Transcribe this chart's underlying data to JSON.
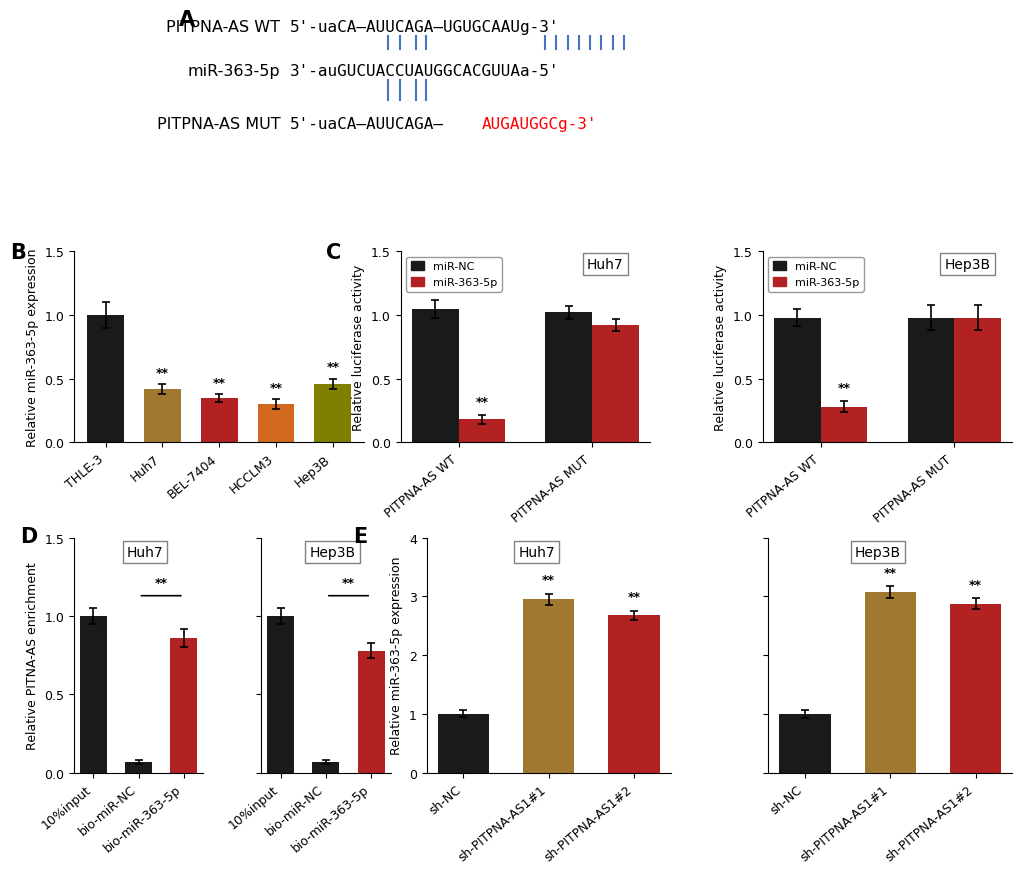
{
  "panel_A": {
    "lines_color": "#4472C4"
  },
  "panel_B": {
    "categories": [
      "THLE-3",
      "Huh7",
      "BEL-7404",
      "HCCLM3",
      "Hep3B"
    ],
    "values": [
      1.0,
      0.42,
      0.35,
      0.3,
      0.46
    ],
    "errors": [
      0.1,
      0.04,
      0.03,
      0.04,
      0.04
    ],
    "colors": [
      "#1a1a1a",
      "#A07830",
      "#B22222",
      "#D2691E",
      "#808000"
    ],
    "ylabel": "Relative miR-363-5p expression",
    "ylim": [
      0,
      1.5
    ],
    "yticks": [
      0,
      0.5,
      1.0,
      1.5
    ],
    "sig_stars": [
      "",
      "**",
      "**",
      "**",
      "**"
    ]
  },
  "panel_C_huh7": {
    "categories": [
      "PITPNA-AS WT",
      "PITPNA-AS MUT"
    ],
    "values_black": [
      1.05,
      1.02
    ],
    "values_red": [
      0.18,
      0.92
    ],
    "errors_black": [
      0.07,
      0.05
    ],
    "errors_red": [
      0.035,
      0.045
    ],
    "ylabel": "Relative luciferase activity",
    "ylim": [
      0,
      1.5
    ],
    "yticks": [
      0,
      0.5,
      1.0,
      1.5
    ],
    "title": "Huh7",
    "sig_wt": "**",
    "legend_black": "miR-NC",
    "legend_red": "miR-363-5p"
  },
  "panel_C_hep3b": {
    "categories": [
      "PITPNA-AS WT",
      "PITPNA-AS MUT"
    ],
    "values_black": [
      0.98,
      0.98
    ],
    "values_red": [
      0.28,
      0.98
    ],
    "errors_black": [
      0.07,
      0.1
    ],
    "errors_red": [
      0.045,
      0.1
    ],
    "ylabel": "Relative luciferase activity",
    "ylim": [
      0,
      1.5
    ],
    "yticks": [
      0,
      0.5,
      1.0,
      1.5
    ],
    "title": "Hep3B",
    "sig_wt": "**",
    "legend_black": "miR-NC",
    "legend_red": "miR-363-5p"
  },
  "panel_D_huh7": {
    "categories": [
      "10%input",
      "bio-miR-NC",
      "bio-miR-363-5p"
    ],
    "values": [
      1.0,
      0.07,
      0.86
    ],
    "errors": [
      0.05,
      0.013,
      0.055
    ],
    "colors": [
      "#1a1a1a",
      "#1a1a1a",
      "#B22222"
    ],
    "ylabel": "Relative PITNA-AS enrichment",
    "ylim": [
      0,
      1.5
    ],
    "yticks": [
      0,
      0.5,
      1.0,
      1.5
    ],
    "title": "Huh7",
    "sig": "**"
  },
  "panel_D_hep3b": {
    "categories": [
      "10%input",
      "bio-miR-NC",
      "bio-miR-363-5p"
    ],
    "values": [
      1.0,
      0.07,
      0.78
    ],
    "errors": [
      0.05,
      0.013,
      0.048
    ],
    "colors": [
      "#1a1a1a",
      "#1a1a1a",
      "#B22222"
    ],
    "ylabel": "",
    "ylim": [
      0,
      1.5
    ],
    "yticks": [
      0,
      0.5,
      1.0,
      1.5
    ],
    "title": "Hep3B",
    "sig": "**"
  },
  "panel_E_huh7": {
    "categories": [
      "sh-NC",
      "sh-PITPNA-AS1#1",
      "sh-PITPNA-AS1#2"
    ],
    "values": [
      1.0,
      2.95,
      2.68
    ],
    "errors": [
      0.06,
      0.1,
      0.08
    ],
    "colors": [
      "#1a1a1a",
      "#A07830",
      "#B22222"
    ],
    "ylabel": "Relative miR-363-5p expression",
    "ylim": [
      0,
      4
    ],
    "yticks": [
      0,
      1,
      2,
      3,
      4
    ],
    "title": "Huh7",
    "sig_stars": [
      "",
      "**",
      "**"
    ]
  },
  "panel_E_hep3b": {
    "categories": [
      "sh-NC",
      "sh-PITPNA-AS1#1",
      "sh-PITPNA-AS1#2"
    ],
    "values": [
      1.0,
      3.08,
      2.88
    ],
    "errors": [
      0.07,
      0.1,
      0.09
    ],
    "colors": [
      "#1a1a1a",
      "#A07830",
      "#B22222"
    ],
    "ylabel": "",
    "ylim": [
      0,
      4
    ],
    "yticks": [
      0,
      1,
      2,
      3,
      4
    ],
    "title": "Hep3B",
    "sig_stars": [
      "",
      "**",
      "**"
    ]
  },
  "axis_fontsize": 9,
  "tick_fontsize": 9,
  "black_color": "#1a1a1a",
  "red_color": "#B22222"
}
